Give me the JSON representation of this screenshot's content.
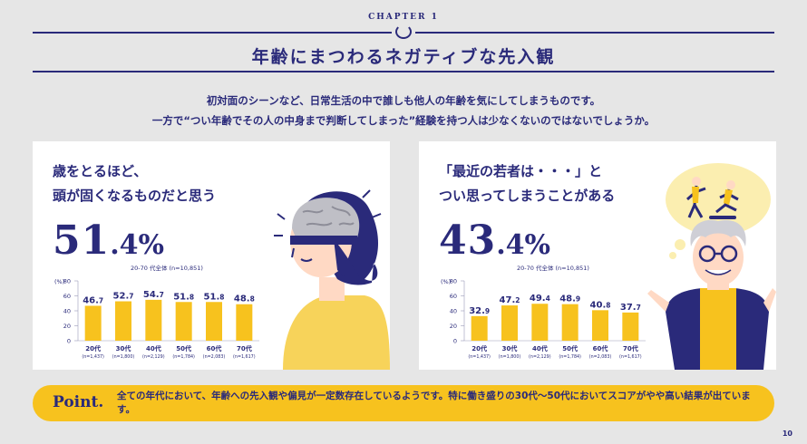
{
  "chapter": "CHAPTER 1",
  "title": "年齢にまつわるネガティブな先入観",
  "intro": {
    "line1": "初対面のシーンなど、日常生活の中で誰しも他人の年齢を気にしてしまうものです。",
    "line2": "一方で“つい年齢でその人の中身まで判断してしまった”経験を持つ人は少なくないのではないでしょうか。"
  },
  "colors": {
    "navy": "#2a2a7a",
    "yellow": "#f7c21e",
    "background": "#e6e6e6",
    "panel": "#ffffff"
  },
  "left_panel": {
    "headline1": "歳をとるほど、",
    "headline2": "頭が固くなるものだと思う",
    "big_int": "51",
    "big_dec": ".4%",
    "sample": "20-70 代全体 (n=10,851)",
    "illustration": "head-with-brain-icon"
  },
  "right_panel": {
    "headline1": "「最近の若者は・・・」と",
    "headline2": "つい思ってしまうことがある",
    "big_int": "43",
    "big_dec": ".4%",
    "sample": "20-70 代全体 (n=10,851)",
    "illustration": "old-man-thinking-of-youth-icon"
  },
  "chart_data": [
    {
      "type": "bar",
      "ylabel": "(%)",
      "ylim": [
        0,
        80
      ],
      "yticks": [
        0,
        20,
        40,
        60,
        80
      ],
      "categories": [
        "20代",
        "30代",
        "40代",
        "50代",
        "60代",
        "70代"
      ],
      "sample_sizes": [
        "(n=1,437)",
        "(n=1,800)",
        "(n=2,129)",
        "(n=1,784)",
        "(n=2,083)",
        "(n=1,617)"
      ],
      "values": [
        46.7,
        52.7,
        54.7,
        51.8,
        51.8,
        48.8
      ]
    },
    {
      "type": "bar",
      "ylabel": "(%)",
      "ylim": [
        0,
        80
      ],
      "yticks": [
        0,
        20,
        40,
        60,
        80
      ],
      "categories": [
        "20代",
        "30代",
        "40代",
        "50代",
        "60代",
        "70代"
      ],
      "sample_sizes": [
        "(n=1,437)",
        "(n=1,800)",
        "(n=2,129)",
        "(n=1,784)",
        "(n=2,083)",
        "(n=1,617)"
      ],
      "values": [
        32.9,
        47.2,
        49.4,
        48.9,
        40.8,
        37.7
      ]
    }
  ],
  "point": {
    "label": "Point.",
    "text": "全ての年代において、年齢への先入観や偏見が一定数存在しているようです。特に働き盛りの30代〜50代においてスコアがやや高い結果が出ています。"
  },
  "page_number": "10"
}
